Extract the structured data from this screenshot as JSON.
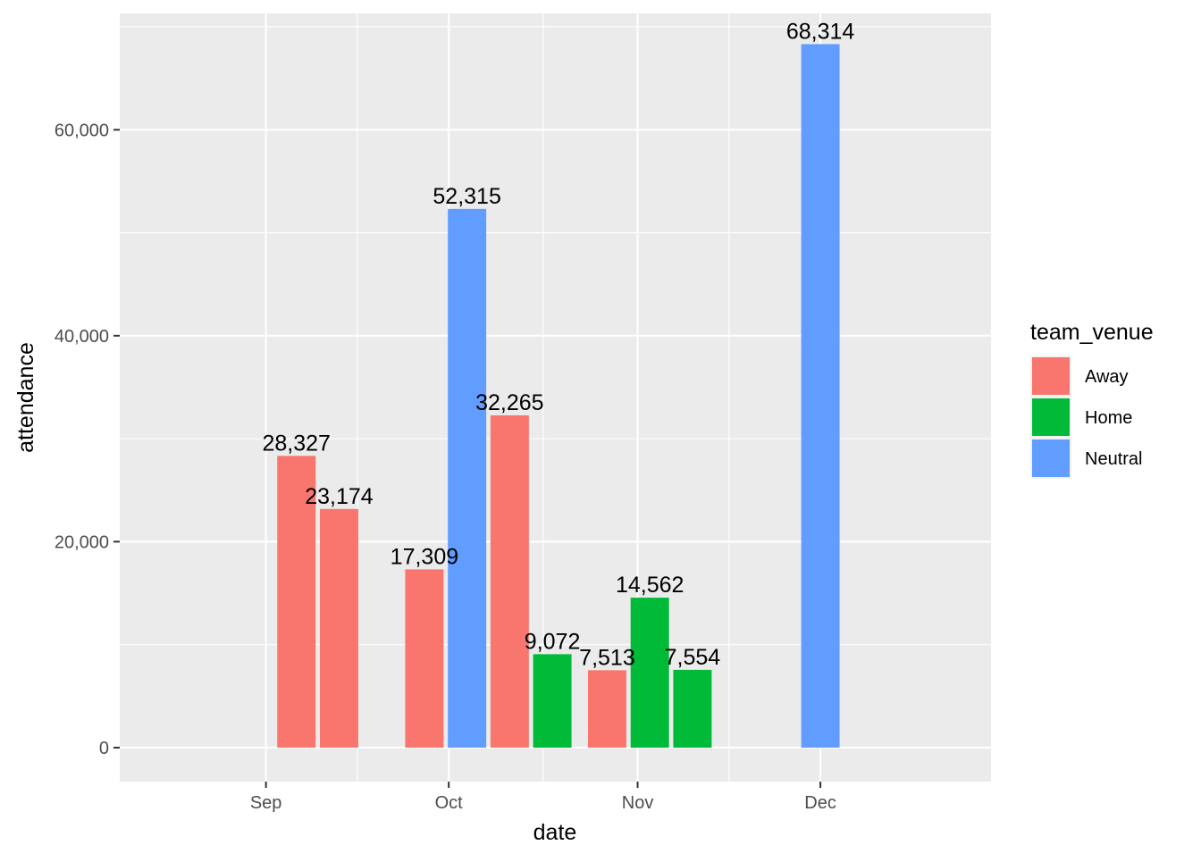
{
  "chart_data": {
    "type": "bar",
    "xlabel": "date",
    "ylabel": "attendance",
    "x_ticks": [
      "Sep",
      "Oct",
      "Nov",
      "Dec"
    ],
    "y_ticks": [
      "0",
      "20,000",
      "40,000",
      "60,000"
    ],
    "ylim": [
      -3300,
      71300
    ],
    "grid": true,
    "legend": {
      "title": "team_venue",
      "placement": "right",
      "entries": [
        {
          "name": "Away",
          "color": "#F8766D"
        },
        {
          "name": "Home",
          "color": "#00BA38"
        },
        {
          "name": "Neutral",
          "color": "#619CFF"
        }
      ]
    },
    "bars": [
      {
        "date": "2015-09-06",
        "team_venue": "Away",
        "attendance": 28327,
        "label": "28,327"
      },
      {
        "date": "2015-09-13",
        "team_venue": "Away",
        "attendance": 23174,
        "label": "23,174"
      },
      {
        "date": "2015-09-27",
        "team_venue": "Away",
        "attendance": 17309,
        "label": "17,309"
      },
      {
        "date": "2015-10-04",
        "team_venue": "Neutral",
        "attendance": 52315,
        "label": "52,315"
      },
      {
        "date": "2015-10-11",
        "team_venue": "Away",
        "attendance": 32265,
        "label": "32,265"
      },
      {
        "date": "2015-10-18",
        "team_venue": "Home",
        "attendance": 9072,
        "label": "9,072"
      },
      {
        "date": "2015-10-27",
        "team_venue": "Away",
        "attendance": 7513,
        "label": "7,513"
      },
      {
        "date": "2015-11-03",
        "team_venue": "Home",
        "attendance": 14562,
        "label": "14,562"
      },
      {
        "date": "2015-11-10",
        "team_venue": "Home",
        "attendance": 7554,
        "label": "7,554"
      },
      {
        "date": "2015-12-01",
        "team_venue": "Neutral",
        "attendance": 68314,
        "label": "68,314"
      }
    ]
  }
}
